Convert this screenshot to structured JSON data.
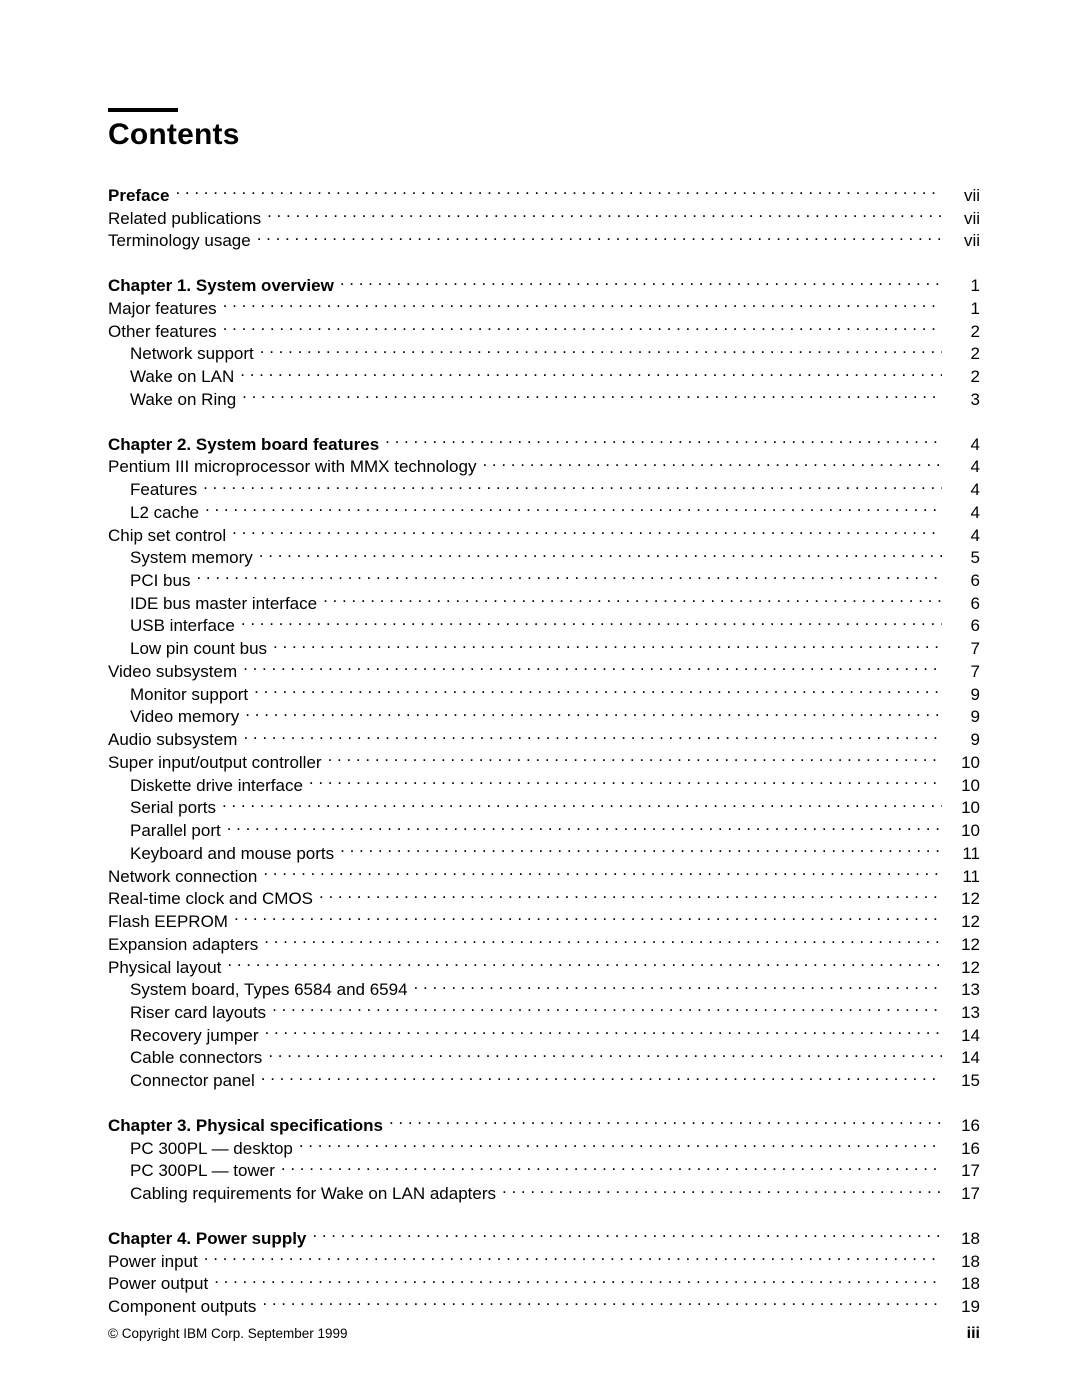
{
  "title": "Contents",
  "footer": {
    "copyright": "© Copyright IBM Corp. September 1999",
    "page_number": "iii"
  },
  "toc": [
    {
      "entries": [
        {
          "label": "Preface",
          "page": "vii",
          "bold": true,
          "indent": 0
        },
        {
          "label": "Related publications",
          "page": "vii",
          "bold": false,
          "indent": 0
        },
        {
          "label": "Terminology usage",
          "page": "vii",
          "bold": false,
          "indent": 0
        }
      ]
    },
    {
      "entries": [
        {
          "label": "Chapter 1.  System overview",
          "page": "1",
          "bold": true,
          "indent": 0
        },
        {
          "label": "Major features",
          "page": "1",
          "bold": false,
          "indent": 0
        },
        {
          "label": "Other features",
          "page": "2",
          "bold": false,
          "indent": 0
        },
        {
          "label": "Network support",
          "page": "2",
          "bold": false,
          "indent": 1
        },
        {
          "label": "Wake on LAN",
          "page": "2",
          "bold": false,
          "indent": 1
        },
        {
          "label": "Wake on Ring",
          "page": "3",
          "bold": false,
          "indent": 1
        }
      ]
    },
    {
      "entries": [
        {
          "label": "Chapter 2.  System board features",
          "page": "4",
          "bold": true,
          "indent": 0
        },
        {
          "label": "Pentium III microprocessor with MMX technology",
          "page": "4",
          "bold": false,
          "indent": 0
        },
        {
          "label": "Features",
          "page": "4",
          "bold": false,
          "indent": 1
        },
        {
          "label": "L2 cache",
          "page": "4",
          "bold": false,
          "indent": 1
        },
        {
          "label": "Chip set control",
          "page": "4",
          "bold": false,
          "indent": 0
        },
        {
          "label": "System memory",
          "page": "5",
          "bold": false,
          "indent": 1
        },
        {
          "label": "PCI bus",
          "page": "6",
          "bold": false,
          "indent": 1
        },
        {
          "label": "IDE bus master interface",
          "page": "6",
          "bold": false,
          "indent": 1
        },
        {
          "label": "USB interface",
          "page": "6",
          "bold": false,
          "indent": 1
        },
        {
          "label": "Low pin count bus",
          "page": "7",
          "bold": false,
          "indent": 1
        },
        {
          "label": "Video subsystem",
          "page": "7",
          "bold": false,
          "indent": 0
        },
        {
          "label": "Monitor support",
          "page": "9",
          "bold": false,
          "indent": 1
        },
        {
          "label": "Video memory",
          "page": "9",
          "bold": false,
          "indent": 1
        },
        {
          "label": "Audio subsystem",
          "page": "9",
          "bold": false,
          "indent": 0
        },
        {
          "label": "Super input/output controller",
          "page": "10",
          "bold": false,
          "indent": 0
        },
        {
          "label": "Diskette drive interface",
          "page": "10",
          "bold": false,
          "indent": 1
        },
        {
          "label": "Serial ports",
          "page": "10",
          "bold": false,
          "indent": 1
        },
        {
          "label": "Parallel port",
          "page": "10",
          "bold": false,
          "indent": 1
        },
        {
          "label": "Keyboard and mouse ports",
          "page": "11",
          "bold": false,
          "indent": 1
        },
        {
          "label": "Network connection",
          "page": "11",
          "bold": false,
          "indent": 0
        },
        {
          "label": "Real-time clock and CMOS",
          "page": "12",
          "bold": false,
          "indent": 0
        },
        {
          "label": "Flash EEPROM",
          "page": "12",
          "bold": false,
          "indent": 0
        },
        {
          "label": "Expansion adapters",
          "page": "12",
          "bold": false,
          "indent": 0
        },
        {
          "label": "Physical layout",
          "page": "12",
          "bold": false,
          "indent": 0
        },
        {
          "label": "System board, Types 6584 and 6594",
          "page": "13",
          "bold": false,
          "indent": 1
        },
        {
          "label": "Riser card layouts",
          "page": "13",
          "bold": false,
          "indent": 1
        },
        {
          "label": "Recovery jumper",
          "page": "14",
          "bold": false,
          "indent": 1
        },
        {
          "label": "Cable connectors",
          "page": "14",
          "bold": false,
          "indent": 1
        },
        {
          "label": "Connector panel",
          "page": "15",
          "bold": false,
          "indent": 1
        }
      ]
    },
    {
      "entries": [
        {
          "label": "Chapter 3.  Physical specifications",
          "page": "16",
          "bold": true,
          "indent": 0
        },
        {
          "label": "PC 300PL — desktop",
          "page": "16",
          "bold": false,
          "indent": 1
        },
        {
          "label": "PC 300PL — tower",
          "page": "17",
          "bold": false,
          "indent": 1
        },
        {
          "label": "Cabling requirements for Wake on LAN adapters",
          "page": "17",
          "bold": false,
          "indent": 1
        }
      ]
    },
    {
      "entries": [
        {
          "label": "Chapter 4.  Power supply",
          "page": "18",
          "bold": true,
          "indent": 0
        },
        {
          "label": "Power input",
          "page": "18",
          "bold": false,
          "indent": 0
        },
        {
          "label": "Power output",
          "page": "18",
          "bold": false,
          "indent": 0
        },
        {
          "label": "Component outputs",
          "page": "19",
          "bold": false,
          "indent": 0
        }
      ]
    }
  ]
}
